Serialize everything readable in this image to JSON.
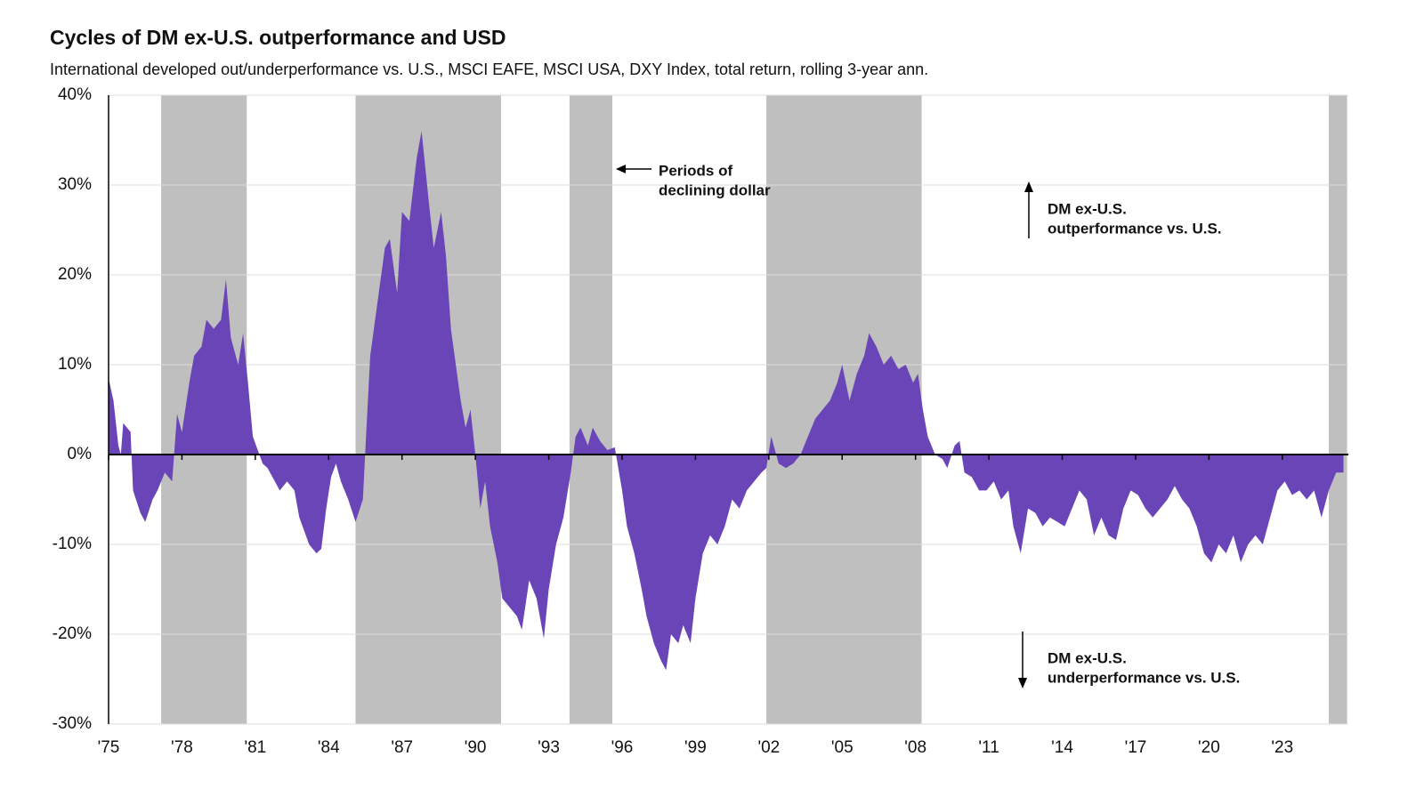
{
  "chart_data": {
    "type": "area",
    "title": "Cycles of DM ex-U.S. outperformance and USD",
    "subtitle": "International developed out/underperformance vs. U.S., MSCI EAFE, MSCI USA, DXY Index, total return, rolling 3-year ann.",
    "annotations": [
      {
        "lines": [
          "Periods of",
          "declining dollar"
        ]
      },
      {
        "lines": [
          "DM ex-U.S.",
          "outperformance vs. U.S."
        ]
      },
      {
        "lines": [
          "DM ex-U.S.",
          "underperformance vs. U.S."
        ]
      }
    ],
    "shaded_periods": [
      [
        1977.15,
        1980.65
      ],
      [
        1985.1,
        1991.05
      ],
      [
        1993.85,
        1995.6
      ],
      [
        2001.9,
        2008.25
      ],
      [
        2024.9,
        2025.65
      ]
    ],
    "shade_color": "#bfbfbf",
    "grid": true,
    "xlim": [
      1975,
      2025.7
    ],
    "xticks": [
      {
        "value": 1975,
        "label": "'75"
      },
      {
        "value": 1978,
        "label": "'78"
      },
      {
        "value": 1981,
        "label": "'81"
      },
      {
        "value": 1984,
        "label": "'84"
      },
      {
        "value": 1987,
        "label": "'87"
      },
      {
        "value": 1990,
        "label": "'90"
      },
      {
        "value": 1993,
        "label": "'93"
      },
      {
        "value": 1996,
        "label": "'96"
      },
      {
        "value": 1999,
        "label": "'99"
      },
      {
        "value": 2002,
        "label": "'02"
      },
      {
        "value": 2005,
        "label": "'05"
      },
      {
        "value": 2008,
        "label": "'08"
      },
      {
        "value": 2011,
        "label": "'11"
      },
      {
        "value": 2014,
        "label": "'14"
      },
      {
        "value": 2017,
        "label": "'17"
      },
      {
        "value": 2020,
        "label": "'20"
      },
      {
        "value": 2023,
        "label": "'23"
      }
    ],
    "ylim": [
      -30,
      40
    ],
    "yticks": [
      {
        "value": -30,
        "label": "-30%"
      },
      {
        "value": -20,
        "label": "-20%"
      },
      {
        "value": -10,
        "label": "-10%"
      },
      {
        "value": 0,
        "label": "0%"
      },
      {
        "value": 10,
        "label": "10%"
      },
      {
        "value": 20,
        "label": "20%"
      },
      {
        "value": 30,
        "label": "30%"
      },
      {
        "value": 40,
        "label": "40%"
      }
    ],
    "x": [
      1975.0,
      1975.2,
      1975.4,
      1975.5,
      1975.6,
      1975.9,
      1976.0,
      1976.3,
      1976.5,
      1976.8,
      1977.0,
      1977.3,
      1977.6,
      1977.8,
      1978.0,
      1978.3,
      1978.5,
      1978.8,
      1979.0,
      1979.3,
      1979.6,
      1979.8,
      1980.0,
      1980.3,
      1980.5,
      1980.7,
      1980.9,
      1981.1,
      1981.3,
      1981.5,
      1981.8,
      1982.0,
      1982.3,
      1982.6,
      1982.8,
      1983.0,
      1983.2,
      1983.5,
      1983.7,
      1983.9,
      1984.1,
      1984.3,
      1984.5,
      1984.8,
      1985.1,
      1985.4,
      1985.5,
      1985.7,
      1986.0,
      1986.3,
      1986.5,
      1986.8,
      1987.0,
      1987.3,
      1987.6,
      1987.8,
      1988.1,
      1988.3,
      1988.6,
      1988.8,
      1989.0,
      1989.2,
      1989.4,
      1989.6,
      1989.8,
      1990.0,
      1990.2,
      1990.4,
      1990.6,
      1990.9,
      1991.1,
      1991.4,
      1991.7,
      1991.9,
      1992.2,
      1992.5,
      1992.8,
      1993.0,
      1993.3,
      1993.6,
      1993.9,
      1994.1,
      1994.3,
      1994.6,
      1994.8,
      1995.1,
      1995.4,
      1995.7,
      1996.0,
      1996.2,
      1996.5,
      1996.8,
      1997.0,
      1997.3,
      1997.6,
      1997.8,
      1998.0,
      1998.3,
      1998.5,
      1998.8,
      1999.0,
      1999.3,
      1999.6,
      1999.9,
      2000.2,
      2000.5,
      2000.8,
      2001.1,
      2001.4,
      2001.7,
      2001.9,
      2002.1,
      2002.4,
      2002.7,
      2003.0,
      2003.3,
      2003.6,
      2003.9,
      2004.2,
      2004.5,
      2004.8,
      2005.0,
      2005.3,
      2005.6,
      2005.9,
      2006.1,
      2006.4,
      2006.7,
      2007.0,
      2007.3,
      2007.6,
      2007.9,
      2008.1,
      2008.3,
      2008.5,
      2008.8,
      2009.1,
      2009.3,
      2009.6,
      2009.8,
      2010.0,
      2010.3,
      2010.6,
      2010.9,
      2011.2,
      2011.5,
      2011.8,
      2012.0,
      2012.3,
      2012.6,
      2012.9,
      2013.2,
      2013.5,
      2013.8,
      2014.1,
      2014.4,
      2014.7,
      2015.0,
      2015.3,
      2015.6,
      2015.9,
      2016.2,
      2016.5,
      2016.8,
      2017.1,
      2017.4,
      2017.7,
      2018.0,
      2018.3,
      2018.6,
      2018.9,
      2019.2,
      2019.5,
      2019.8,
      2020.1,
      2020.4,
      2020.7,
      2021.0,
      2021.3,
      2021.6,
      2021.9,
      2022.2,
      2022.5,
      2022.8,
      2023.1,
      2023.4,
      2023.7,
      2024.0,
      2024.3,
      2024.6,
      2024.9,
      2025.2,
      2025.5
    ],
    "series": [
      {
        "color": "#6a45b8",
        "values": [
          8.5,
          6,
          1,
          0,
          3.5,
          2.5,
          -4,
          -6.5,
          -7.5,
          -5,
          -4,
          -2,
          -3,
          4.5,
          2.5,
          8,
          11,
          12,
          15,
          14,
          15,
          19.5,
          13,
          10,
          13.5,
          8,
          2,
          0.5,
          -1,
          -1.5,
          -3,
          -4,
          -3,
          -4,
          -7,
          -8.5,
          -10,
          -11,
          -10.5,
          -6,
          -2.5,
          -1,
          -3,
          -5,
          -7.5,
          -5,
          0.5,
          11,
          17,
          23,
          24,
          18,
          27,
          26,
          33,
          36,
          28,
          23,
          27,
          22,
          14,
          10,
          6,
          3,
          5,
          0,
          -6,
          -3,
          -8,
          -12,
          -16,
          -17,
          -18,
          -19.5,
          -14,
          -16,
          -20.5,
          -15,
          -10,
          -7,
          -2,
          2,
          3,
          1,
          3,
          1.5,
          0.5,
          0.8,
          -4,
          -8,
          -11,
          -15,
          -18,
          -21,
          -23,
          -24,
          -20,
          -21,
          -19,
          -21,
          -16,
          -11,
          -9,
          -10,
          -8,
          -5,
          -6,
          -4,
          -3,
          -2,
          -1.5,
          2,
          -1,
          -1.5,
          -1,
          0,
          2,
          4,
          5,
          6,
          8,
          10,
          6,
          9,
          11,
          13.5,
          12,
          10,
          11,
          9.5,
          10,
          8,
          9,
          5,
          2,
          0,
          -0.5,
          -1.5,
          1,
          1.5,
          -2,
          -2.5,
          -4,
          -4,
          -3,
          -5,
          -4,
          -8,
          -11,
          -6,
          -6.5,
          -8,
          -7,
          -7.5,
          -8,
          -6,
          -4,
          -5,
          -9,
          -7,
          -9,
          -9.5,
          -6,
          -4,
          -4.5,
          -6,
          -7,
          -6,
          -5,
          -3.5,
          -5,
          -6,
          -8,
          -11,
          -12,
          -10,
          -11,
          -9,
          -12,
          -10,
          -9,
          -10,
          -7,
          -4,
          -3,
          -4.5,
          -4,
          -5,
          -4,
          -7,
          -4,
          -2,
          -2
        ]
      }
    ]
  }
}
